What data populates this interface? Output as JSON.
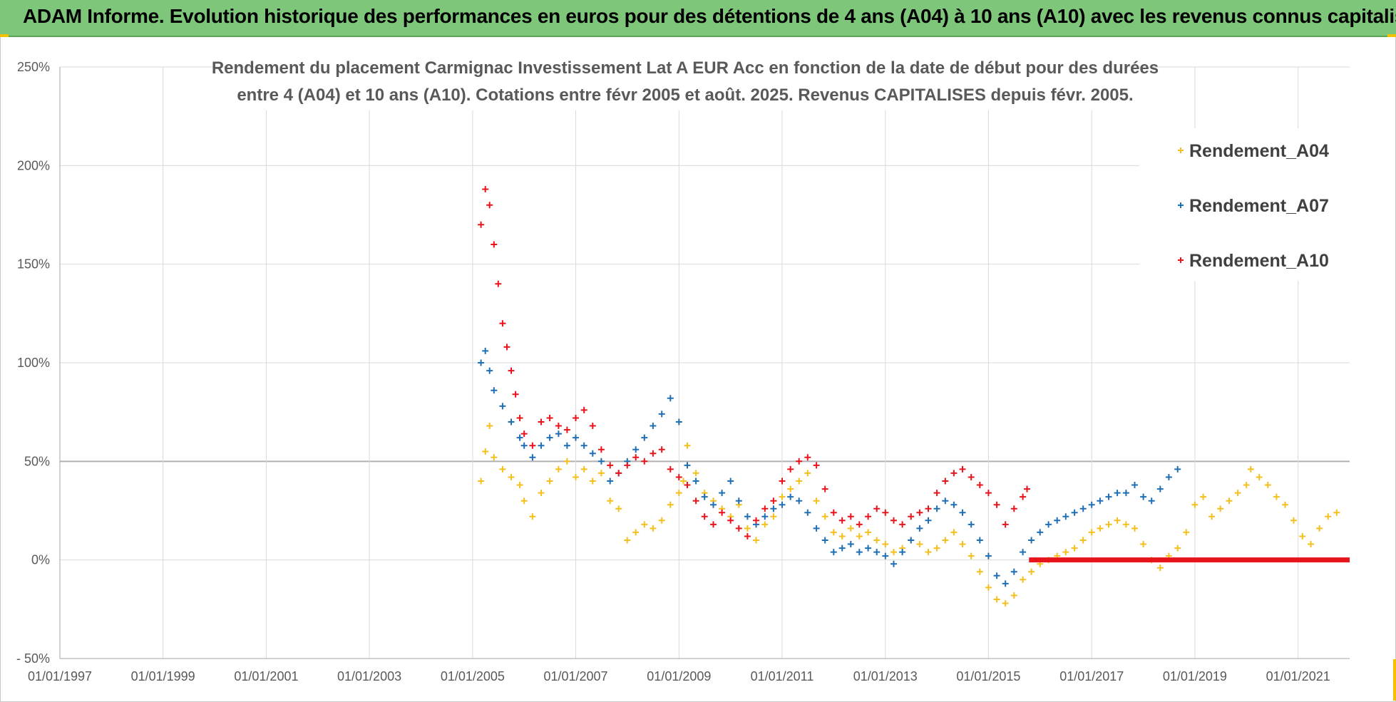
{
  "header": {
    "title": "ADAM Informe. Evolution historique des performances en euros pour des détentions de 4 ans (A04) à 10 ans (A10) avec les revenus connus capitalisés"
  },
  "chart_data": {
    "type": "scatter",
    "title_line1": "Rendement du placement Carmignac Investissement Lat A EUR Acc en fonction de la date de début pour des durées",
    "title_line2": "entre 4 (A04) et 10 ans (A10).  Cotations entre févr 2005 et août. 2025.  Revenus CAPITALISES depuis févr. 2005.",
    "xlabel": "",
    "ylabel": "",
    "x_range": [
      "1997-01-01",
      "2022-01-01"
    ],
    "ylim": [
      -50,
      250
    ],
    "y_ticks": [
      -50,
      0,
      50,
      100,
      150,
      200,
      250
    ],
    "y_tick_labels": [
      "- 50%",
      "0%",
      "50%",
      "100%",
      "150%",
      "200%",
      "250%"
    ],
    "x_ticks": [
      "1997-01-01",
      "1999-01-01",
      "2001-01-01",
      "2003-01-01",
      "2005-01-01",
      "2007-01-01",
      "2009-01-01",
      "2011-01-01",
      "2013-01-01",
      "2015-01-01",
      "2017-01-01",
      "2019-01-01",
      "2021-01-01"
    ],
    "x_tick_labels": [
      "01/01/1997",
      "01/01/1999",
      "01/01/2001",
      "01/01/2003",
      "01/01/2005",
      "01/01/2007",
      "01/01/2009",
      "01/01/2011",
      "01/01/2013",
      "01/01/2015",
      "01/01/2017",
      "01/01/2019",
      "01/01/2021"
    ],
    "grid": true,
    "legend_position": "top-right",
    "marker": "+",
    "series": [
      {
        "name": "Rendement_A04",
        "color": "#f5bf1d",
        "points": [
          [
            "2005-03-01",
            40
          ],
          [
            "2005-04-01",
            55
          ],
          [
            "2005-05-01",
            68
          ],
          [
            "2005-06-01",
            52
          ],
          [
            "2005-08-01",
            46
          ],
          [
            "2005-10-01",
            42
          ],
          [
            "2005-12-01",
            38
          ],
          [
            "2006-01-01",
            30
          ],
          [
            "2006-03-01",
            22
          ],
          [
            "2006-05-01",
            34
          ],
          [
            "2006-07-01",
            40
          ],
          [
            "2006-09-01",
            46
          ],
          [
            "2006-11-01",
            50
          ],
          [
            "2007-01-01",
            42
          ],
          [
            "2007-03-01",
            46
          ],
          [
            "2007-05-01",
            40
          ],
          [
            "2007-07-01",
            44
          ],
          [
            "2007-09-01",
            30
          ],
          [
            "2007-11-01",
            26
          ],
          [
            "2008-01-01",
            10
          ],
          [
            "2008-03-01",
            14
          ],
          [
            "2008-05-01",
            18
          ],
          [
            "2008-07-01",
            16
          ],
          [
            "2008-09-01",
            20
          ],
          [
            "2008-11-01",
            28
          ],
          [
            "2009-01-01",
            34
          ],
          [
            "2009-02-01",
            40
          ],
          [
            "2009-03-01",
            58
          ],
          [
            "2009-05-01",
            44
          ],
          [
            "2009-07-01",
            34
          ],
          [
            "2009-09-01",
            30
          ],
          [
            "2009-11-01",
            26
          ],
          [
            "2010-01-01",
            22
          ],
          [
            "2010-03-01",
            28
          ],
          [
            "2010-05-01",
            16
          ],
          [
            "2010-07-01",
            10
          ],
          [
            "2010-09-01",
            18
          ],
          [
            "2010-11-01",
            22
          ],
          [
            "2011-01-01",
            32
          ],
          [
            "2011-03-01",
            36
          ],
          [
            "2011-05-01",
            40
          ],
          [
            "2011-07-01",
            44
          ],
          [
            "2011-09-01",
            30
          ],
          [
            "2011-11-01",
            22
          ],
          [
            "2012-01-01",
            14
          ],
          [
            "2012-03-01",
            12
          ],
          [
            "2012-05-01",
            16
          ],
          [
            "2012-07-01",
            12
          ],
          [
            "2012-09-01",
            14
          ],
          [
            "2012-11-01",
            10
          ],
          [
            "2013-01-01",
            8
          ],
          [
            "2013-03-01",
            4
          ],
          [
            "2013-05-01",
            6
          ],
          [
            "2013-07-01",
            10
          ],
          [
            "2013-09-01",
            8
          ],
          [
            "2013-11-01",
            4
          ],
          [
            "2014-01-01",
            6
          ],
          [
            "2014-03-01",
            10
          ],
          [
            "2014-05-01",
            14
          ],
          [
            "2014-07-01",
            8
          ],
          [
            "2014-09-01",
            2
          ],
          [
            "2014-11-01",
            -6
          ],
          [
            "2015-01-01",
            -14
          ],
          [
            "2015-03-01",
            -20
          ],
          [
            "2015-05-01",
            -22
          ],
          [
            "2015-07-01",
            -18
          ],
          [
            "2015-09-01",
            -10
          ],
          [
            "2015-11-01",
            -6
          ],
          [
            "2016-01-01",
            -2
          ],
          [
            "2016-03-01",
            0
          ],
          [
            "2016-05-01",
            2
          ],
          [
            "2016-07-01",
            4
          ],
          [
            "2016-09-01",
            6
          ],
          [
            "2016-11-01",
            10
          ],
          [
            "2017-01-01",
            14
          ],
          [
            "2017-03-01",
            16
          ],
          [
            "2017-05-01",
            18
          ],
          [
            "2017-07-01",
            20
          ],
          [
            "2017-09-01",
            18
          ],
          [
            "2017-11-01",
            16
          ],
          [
            "2018-01-01",
            8
          ],
          [
            "2018-03-01",
            0
          ],
          [
            "2018-05-01",
            -4
          ],
          [
            "2018-07-01",
            2
          ],
          [
            "2018-09-01",
            6
          ],
          [
            "2018-11-01",
            14
          ],
          [
            "2019-01-01",
            28
          ],
          [
            "2019-03-01",
            32
          ],
          [
            "2019-05-01",
            22
          ],
          [
            "2019-07-01",
            26
          ],
          [
            "2019-09-01",
            30
          ],
          [
            "2019-11-01",
            34
          ],
          [
            "2020-01-01",
            38
          ],
          [
            "2020-02-01",
            46
          ],
          [
            "2020-04-01",
            42
          ],
          [
            "2020-06-01",
            38
          ],
          [
            "2020-08-01",
            32
          ],
          [
            "2020-10-01",
            28
          ],
          [
            "2020-12-01",
            20
          ],
          [
            "2021-02-01",
            12
          ],
          [
            "2021-04-01",
            8
          ],
          [
            "2021-06-01",
            16
          ],
          [
            "2021-08-01",
            22
          ],
          [
            "2021-10-01",
            24
          ]
        ]
      },
      {
        "name": "Rendement_A07",
        "color": "#1f6fb5",
        "points": [
          [
            "2005-03-01",
            100
          ],
          [
            "2005-04-01",
            106
          ],
          [
            "2005-05-01",
            96
          ],
          [
            "2005-06-01",
            86
          ],
          [
            "2005-08-01",
            78
          ],
          [
            "2005-10-01",
            70
          ],
          [
            "2005-12-01",
            62
          ],
          [
            "2006-01-01",
            58
          ],
          [
            "2006-03-01",
            52
          ],
          [
            "2006-05-01",
            58
          ],
          [
            "2006-07-01",
            62
          ],
          [
            "2006-09-01",
            64
          ],
          [
            "2006-11-01",
            58
          ],
          [
            "2007-01-01",
            62
          ],
          [
            "2007-03-01",
            58
          ],
          [
            "2007-05-01",
            54
          ],
          [
            "2007-07-01",
            50
          ],
          [
            "2007-09-01",
            40
          ],
          [
            "2007-11-01",
            44
          ],
          [
            "2008-01-01",
            50
          ],
          [
            "2008-03-01",
            56
          ],
          [
            "2008-05-01",
            62
          ],
          [
            "2008-07-01",
            68
          ],
          [
            "2008-09-01",
            74
          ],
          [
            "2008-11-01",
            82
          ],
          [
            "2009-01-01",
            70
          ],
          [
            "2009-03-01",
            48
          ],
          [
            "2009-05-01",
            40
          ],
          [
            "2009-07-01",
            32
          ],
          [
            "2009-09-01",
            28
          ],
          [
            "2009-11-01",
            34
          ],
          [
            "2010-01-01",
            40
          ],
          [
            "2010-03-01",
            30
          ],
          [
            "2010-05-01",
            22
          ],
          [
            "2010-07-01",
            18
          ],
          [
            "2010-09-01",
            22
          ],
          [
            "2010-11-01",
            26
          ],
          [
            "2011-01-01",
            28
          ],
          [
            "2011-03-01",
            32
          ],
          [
            "2011-05-01",
            30
          ],
          [
            "2011-07-01",
            24
          ],
          [
            "2011-09-01",
            16
          ],
          [
            "2011-11-01",
            10
          ],
          [
            "2012-01-01",
            4
          ],
          [
            "2012-03-01",
            6
          ],
          [
            "2012-05-01",
            8
          ],
          [
            "2012-07-01",
            4
          ],
          [
            "2012-09-01",
            6
          ],
          [
            "2012-11-01",
            4
          ],
          [
            "2013-01-01",
            2
          ],
          [
            "2013-03-01",
            -2
          ],
          [
            "2013-05-01",
            4
          ],
          [
            "2013-07-01",
            10
          ],
          [
            "2013-09-01",
            16
          ],
          [
            "2013-11-01",
            20
          ],
          [
            "2014-01-01",
            26
          ],
          [
            "2014-03-01",
            30
          ],
          [
            "2014-05-01",
            28
          ],
          [
            "2014-07-01",
            24
          ],
          [
            "2014-09-01",
            18
          ],
          [
            "2014-11-01",
            10
          ],
          [
            "2015-01-01",
            2
          ],
          [
            "2015-03-01",
            -8
          ],
          [
            "2015-05-01",
            -12
          ],
          [
            "2015-07-01",
            -6
          ],
          [
            "2015-09-01",
            4
          ],
          [
            "2015-11-01",
            10
          ],
          [
            "2016-01-01",
            14
          ],
          [
            "2016-03-01",
            18
          ],
          [
            "2016-05-01",
            20
          ],
          [
            "2016-07-01",
            22
          ],
          [
            "2016-09-01",
            24
          ],
          [
            "2016-11-01",
            26
          ],
          [
            "2017-01-01",
            28
          ],
          [
            "2017-03-01",
            30
          ],
          [
            "2017-05-01",
            32
          ],
          [
            "2017-07-01",
            34
          ],
          [
            "2017-09-01",
            34
          ],
          [
            "2017-11-01",
            38
          ],
          [
            "2018-01-01",
            32
          ],
          [
            "2018-03-01",
            30
          ],
          [
            "2018-05-01",
            36
          ],
          [
            "2018-07-01",
            42
          ],
          [
            "2018-09-01",
            46
          ]
        ]
      },
      {
        "name": "Rendement_A10",
        "color": "#e8141c",
        "points": [
          [
            "2005-03-01",
            170
          ],
          [
            "2005-04-01",
            188
          ],
          [
            "2005-05-01",
            180
          ],
          [
            "2005-06-01",
            160
          ],
          [
            "2005-07-01",
            140
          ],
          [
            "2005-08-01",
            120
          ],
          [
            "2005-09-01",
            108
          ],
          [
            "2005-10-01",
            96
          ],
          [
            "2005-11-01",
            84
          ],
          [
            "2005-12-01",
            72
          ],
          [
            "2006-01-01",
            64
          ],
          [
            "2006-03-01",
            58
          ],
          [
            "2006-05-01",
            70
          ],
          [
            "2006-07-01",
            72
          ],
          [
            "2006-09-01",
            68
          ],
          [
            "2006-11-01",
            66
          ],
          [
            "2007-01-01",
            72
          ],
          [
            "2007-03-01",
            76
          ],
          [
            "2007-05-01",
            68
          ],
          [
            "2007-07-01",
            56
          ],
          [
            "2007-09-01",
            48
          ],
          [
            "2007-11-01",
            44
          ],
          [
            "2008-01-01",
            48
          ],
          [
            "2008-03-01",
            52
          ],
          [
            "2008-05-01",
            50
          ],
          [
            "2008-07-01",
            54
          ],
          [
            "2008-09-01",
            56
          ],
          [
            "2008-11-01",
            46
          ],
          [
            "2009-01-01",
            42
          ],
          [
            "2009-03-01",
            38
          ],
          [
            "2009-05-01",
            30
          ],
          [
            "2009-07-01",
            22
          ],
          [
            "2009-09-01",
            18
          ],
          [
            "2009-11-01",
            24
          ],
          [
            "2010-01-01",
            20
          ],
          [
            "2010-03-01",
            16
          ],
          [
            "2010-05-01",
            12
          ],
          [
            "2010-07-01",
            20
          ],
          [
            "2010-09-01",
            26
          ],
          [
            "2010-11-01",
            30
          ],
          [
            "2011-01-01",
            40
          ],
          [
            "2011-03-01",
            46
          ],
          [
            "2011-05-01",
            50
          ],
          [
            "2011-07-01",
            52
          ],
          [
            "2011-09-01",
            48
          ],
          [
            "2011-11-01",
            36
          ],
          [
            "2012-01-01",
            24
          ],
          [
            "2012-03-01",
            20
          ],
          [
            "2012-05-01",
            22
          ],
          [
            "2012-07-01",
            18
          ],
          [
            "2012-09-01",
            22
          ],
          [
            "2012-11-01",
            26
          ],
          [
            "2013-01-01",
            24
          ],
          [
            "2013-03-01",
            20
          ],
          [
            "2013-05-01",
            18
          ],
          [
            "2013-07-01",
            22
          ],
          [
            "2013-09-01",
            24
          ],
          [
            "2013-11-01",
            26
          ],
          [
            "2014-01-01",
            34
          ],
          [
            "2014-03-01",
            40
          ],
          [
            "2014-05-01",
            44
          ],
          [
            "2014-07-01",
            46
          ],
          [
            "2014-09-01",
            42
          ],
          [
            "2014-11-01",
            38
          ],
          [
            "2015-01-01",
            34
          ],
          [
            "2015-03-01",
            28
          ],
          [
            "2015-05-01",
            18
          ],
          [
            "2015-07-01",
            26
          ],
          [
            "2015-09-01",
            32
          ],
          [
            "2015-10-01",
            36
          ]
        ],
        "flat_segment": {
          "from": "2015-10-15",
          "to": "2022-01-01",
          "value": 0
        }
      }
    ]
  }
}
